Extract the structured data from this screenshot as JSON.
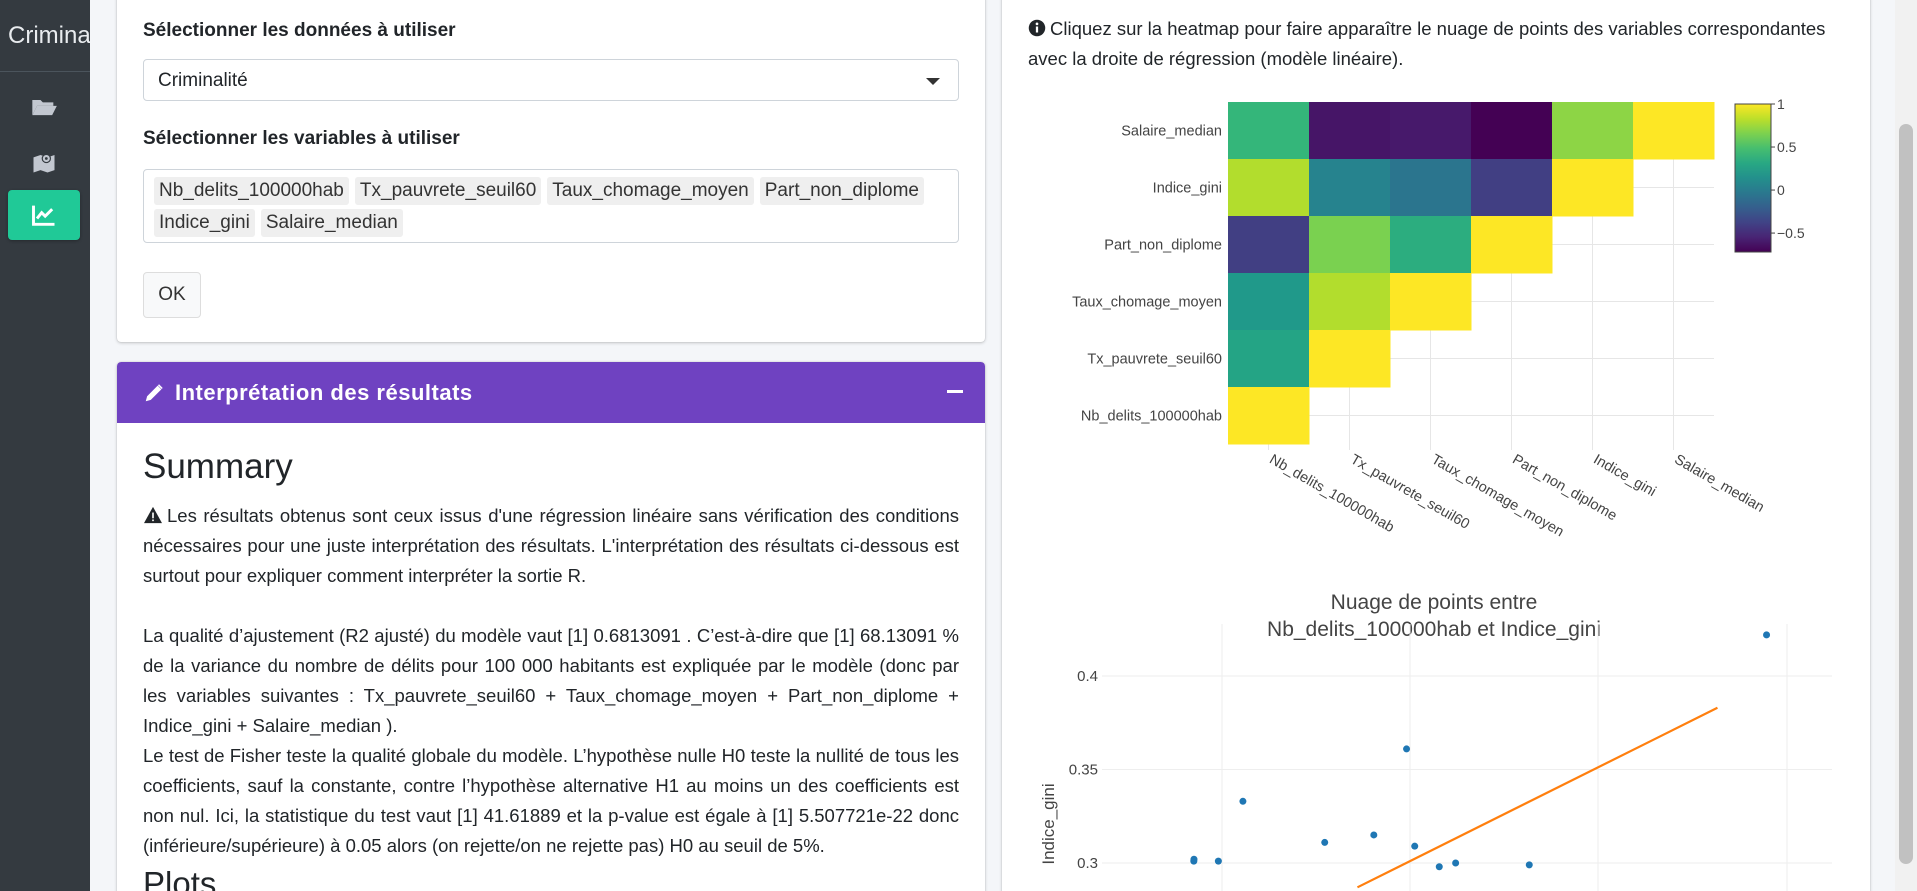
{
  "app": {
    "brand_text": "Crimina"
  },
  "sidebar": {
    "items": [
      {
        "icon": "folder-open-icon",
        "active": false
      },
      {
        "icon": "map-marker-icon",
        "active": false
      },
      {
        "icon": "line-chart-icon",
        "active": true
      }
    ]
  },
  "form": {
    "data_label": "Sélectionner les données à utiliser",
    "data_value": "Criminalité",
    "vars_label": "Sélectionner les variables à utiliser",
    "selected_vars": [
      "Nb_delits_100000hab",
      "Tx_pauvrete_seuil60",
      "Taux_chomage_moyen",
      "Part_non_diplome",
      "Indice_gini",
      "Salaire_median"
    ],
    "ok_label": "OK"
  },
  "interpretation": {
    "title": "Interprétation des résultats",
    "summary_heading": "Summary",
    "warning_text": "Les résultats obtenus sont ceux issus d'une régression linéaire sans vérification des conditions nécessaires pour une juste interprétation des résultats. L'interprétation des résultats ci-dessous est surtout pour expliquer comment interpréter la sortie R.",
    "r2_text": "La qualité d’ajustement (R2 ajusté) du modèle vaut [1] 0.6813091 . C’est-à-dire que [1] 68.13091 % de la variance du nombre de délits pour 100 000 habitants est expliquée par le modèle (donc par les variables suivantes : Tx_pauvrete_seuil60 + Taux_chomage_moyen + Part_non_diplome + Indice_gini + Salaire_median ).",
    "fisher_text": "Le test de Fisher teste la qualité globale du modèle. L’hypothèse nulle H0 teste la nullité de tous les coefficients, sauf la constante, contre l’hypothèse alternative H1 au moins un des coefficients est non nul. Ici, la statistique du test vaut [1] 41.61889 et la p-value est égale à [1] 5.507721e-22 donc (inférieure/supérieure) à 0.05 alors (on rejette/on ne rejette pas) H0 au seuil de 5%.",
    "plots_heading": "Plots"
  },
  "right_panel": {
    "info_text": "Cliquez sur la heatmap pour faire apparaître le nuage de points des variables correspondantes avec la droite de régression (modèle linéaire)."
  },
  "chart_data": [
    {
      "type": "heatmap",
      "variables": [
        "Nb_delits_100000hab",
        "Tx_pauvrete_seuil60",
        "Taux_chomage_moyen",
        "Part_non_diplome",
        "Indice_gini",
        "Salaire_median"
      ],
      "rows": [
        {
          "name": "Salaire_median",
          "values": [
            0.42,
            -0.62,
            -0.6,
            -0.85,
            0.7,
            1
          ]
        },
        {
          "name": "Indice_gini",
          "values": [
            0.8,
            0.05,
            -0.05,
            -0.4,
            1,
            null
          ]
        },
        {
          "name": "Part_non_diplome",
          "values": [
            -0.4,
            0.65,
            0.35,
            1,
            null,
            null
          ]
        },
        {
          "name": "Taux_chomage_moyen",
          "values": [
            0.2,
            0.8,
            1,
            null,
            null,
            null
          ]
        },
        {
          "name": "Tx_pauvrete_seuil60",
          "values": [
            0.28,
            1,
            null,
            null,
            null,
            null
          ]
        },
        {
          "name": "Nb_delits_100000hab",
          "values": [
            1,
            null,
            null,
            null,
            null,
            null
          ]
        }
      ],
      "colorscale": "viridis",
      "zlim": [
        -0.72,
        1
      ],
      "colorbar_ticks": [
        "1",
        "0.5",
        "0",
        "−0.5"
      ],
      "colorbar_tick_values": [
        1,
        0.5,
        0,
        -0.5
      ]
    },
    {
      "type": "scatter",
      "title_line1": "Nuage de points entre",
      "title_line2": "Nb_delits_100000hab et Indice_gini",
      "ylabel": "Indice_gini",
      "yticks": [
        "0.4",
        "0.35",
        "0.3"
      ],
      "ytick_values": [
        0.4,
        0.35,
        0.3
      ],
      "points": [
        {
          "x": 1000,
          "y": 0.301
        },
        {
          "x": 1002,
          "y": 0.302
        },
        {
          "x": 1300,
          "y": 0.301
        },
        {
          "x": 1600,
          "y": 0.333
        },
        {
          "x": 2600,
          "y": 0.311
        },
        {
          "x": 3200,
          "y": 0.315
        },
        {
          "x": 3600,
          "y": 0.361
        },
        {
          "x": 3700,
          "y": 0.309
        },
        {
          "x": 4000,
          "y": 0.298
        },
        {
          "x": 4200,
          "y": 0.3
        },
        {
          "x": 5100,
          "y": 0.299
        },
        {
          "x": 8000,
          "y": 0.422
        }
      ],
      "regression_line": {
        "x": [
          3000,
          7400
        ],
        "y": [
          0.287,
          0.383
        ]
      },
      "line_color": "#ff7f0e",
      "point_color": "#1f77b4"
    }
  ]
}
